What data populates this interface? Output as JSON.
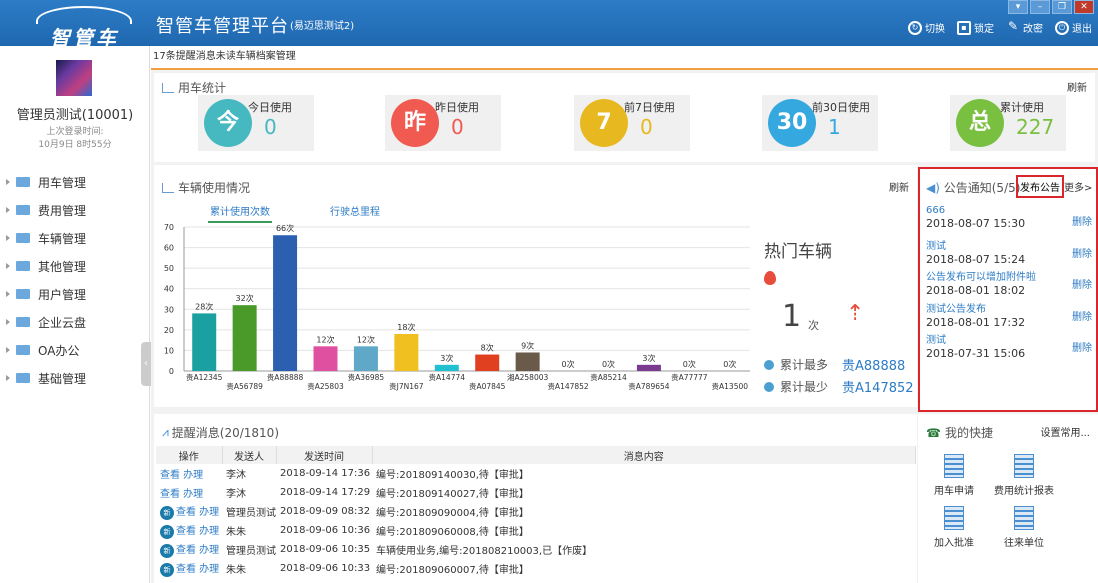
{
  "header": {
    "logo_text": "智管车",
    "title": "智管车管理平台",
    "subtitle": "(易迈思测试2)",
    "actions": [
      {
        "label": "切换"
      },
      {
        "label": "锁定"
      },
      {
        "label": "改密"
      },
      {
        "label": "退出"
      }
    ]
  },
  "user": {
    "name": "管理员测试(10001)",
    "last_login_label": "上次登录时间:",
    "last_login_time": "10月9日 8时55分"
  },
  "nav": [
    {
      "label": "用车管理"
    },
    {
      "label": "费用管理"
    },
    {
      "label": "车辆管理"
    },
    {
      "label": "其他管理"
    },
    {
      "label": "用户管理"
    },
    {
      "label": "企业云盘"
    },
    {
      "label": "OA办公"
    },
    {
      "label": "基础管理"
    }
  ],
  "marquee": "17条提醒消息未读车辆档案管理",
  "stats": {
    "title": "用车统计",
    "refresh": "刷新",
    "items": [
      {
        "badge": "今",
        "label": "今日使用",
        "value": "0",
        "color": "#46b8c0"
      },
      {
        "badge": "昨",
        "label": "昨日使用",
        "value": "0",
        "color": "#f05a50"
      },
      {
        "badge": "7",
        "label": "前7日使用",
        "value": "0",
        "color": "#e8b820"
      },
      {
        "badge": "30",
        "label": "前30日使用",
        "value": "1",
        "color": "#36a8e0"
      },
      {
        "badge": "总",
        "label": "累计使用",
        "value": "227",
        "color": "#7ac040"
      }
    ]
  },
  "usage": {
    "title": "车辆使用情况",
    "refresh": "刷新",
    "tabs": [
      "累计使用次数",
      "行驶总里程"
    ]
  },
  "chart_data": {
    "type": "bar",
    "categories": [
      "贵A12345",
      "贵A56789",
      "贵A88888",
      "贵A25803",
      "贵A36985",
      "贵J7N167",
      "贵A14774",
      "贵A07845",
      "湘A258003",
      "贵A147852",
      "贵A85214",
      "贵A789654",
      "贵A77777",
      "贵A13500"
    ],
    "values": [
      28,
      32,
      66,
      12,
      12,
      18,
      3,
      8,
      9,
      0,
      0,
      3,
      0,
      0
    ],
    "value_suffix": "次",
    "colors": [
      "#1aa0a0",
      "#4a9a2a",
      "#2b5fb0",
      "#e050a0",
      "#60a8c8",
      "#f0c020",
      "#20c0d0",
      "#e04020",
      "#6a5a4a",
      "#888",
      "#888",
      "#7a3a90",
      "#888",
      "#888"
    ],
    "ylim": [
      0,
      70
    ],
    "yticks": [
      0,
      10,
      20,
      30,
      40,
      50,
      60,
      70
    ]
  },
  "hot": {
    "title": "热门车辆",
    "count": "1",
    "unit": "次",
    "most_label": "累计最多",
    "most_plate": "贵A88888",
    "least_label": "累计最少",
    "least_plate": "贵A147852"
  },
  "notice": {
    "title": "公告通知(5/5)",
    "publish": "发布公告",
    "more": "更多>",
    "delete_label": "删除",
    "items": [
      {
        "title": "666",
        "date": "2018-08-07 15:30"
      },
      {
        "title": "测试",
        "date": "2018-08-07 15:24"
      },
      {
        "title": "公告发布可以增加附件啦",
        "date": "2018-08-01 18:02"
      },
      {
        "title": "测试公告发布",
        "date": "2018-08-01 17:32"
      },
      {
        "title": "测试",
        "date": "2018-07-31 15:06"
      }
    ]
  },
  "messages": {
    "title": "提醒消息(20/1810)",
    "headers": [
      "操作",
      "发送人",
      "发送时间",
      "消息内容"
    ],
    "view": "查看",
    "handle": "办理",
    "new_badge": "新",
    "rows": [
      {
        "new": false,
        "sender": "李沐",
        "time": "2018-09-14 17:36",
        "content": "编号:201809140030,待【审批】"
      },
      {
        "new": false,
        "sender": "李沐",
        "time": "2018-09-14 17:29",
        "content": "编号:201809140027,待【审批】"
      },
      {
        "new": true,
        "sender": "管理员测试",
        "time": "2018-09-09 08:32",
        "content": "编号:201809090004,待【审批】"
      },
      {
        "new": true,
        "sender": "朱朱",
        "time": "2018-09-06 10:36",
        "content": "编号:201809060008,待【审批】"
      },
      {
        "new": true,
        "sender": "管理员测试",
        "time": "2018-09-06 10:35",
        "content": "车辆使用业务,编号:201808210003,已【作废】"
      },
      {
        "new": true,
        "sender": "朱朱",
        "time": "2018-09-06 10:33",
        "content": "编号:201809060007,待【审批】"
      }
    ]
  },
  "quick": {
    "title": "我的快捷",
    "settings": "设置常用...",
    "items": [
      {
        "label": "用车申请"
      },
      {
        "label": "费用统计报表"
      },
      {
        "label": "加入批准"
      },
      {
        "label": "往来单位"
      }
    ]
  }
}
